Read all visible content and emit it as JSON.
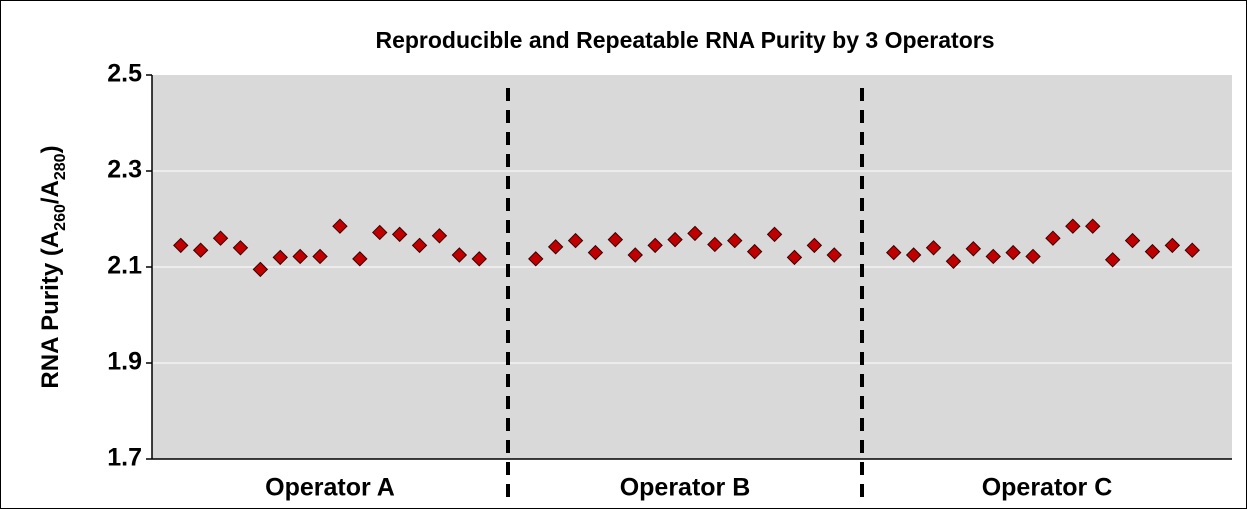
{
  "chart_data": {
    "type": "scatter",
    "title": "Reproducible and Repeatable RNA Purity by 3 Operators",
    "y_label": [
      {
        "text": "RNA Purity (A"
      },
      {
        "text": "260",
        "sub": true
      },
      {
        "text": "/A"
      },
      {
        "text": "280",
        "sub": true
      },
      {
        "text": ")"
      }
    ],
    "color": "#c00000",
    "ylim": [
      1.7,
      2.5
    ],
    "yticks": [
      1.7,
      1.9,
      2.1,
      2.3,
      2.5
    ],
    "grid": true,
    "groups": [
      {
        "name": "Operator A",
        "values": [
          2.145,
          2.135,
          2.16,
          2.14,
          2.095,
          2.12,
          2.122,
          2.122,
          2.185,
          2.117,
          2.172,
          2.168,
          2.145,
          2.165,
          2.125,
          2.117
        ]
      },
      {
        "name": "Operator B",
        "values": [
          2.117,
          2.142,
          2.155,
          2.13,
          2.157,
          2.125,
          2.145,
          2.157,
          2.17,
          2.147,
          2.155,
          2.132,
          2.168,
          2.12,
          2.145,
          2.125
        ]
      },
      {
        "name": "Operator C",
        "values": [
          2.13,
          2.125,
          2.14,
          2.112,
          2.138,
          2.122,
          2.13,
          2.122,
          2.16,
          2.185,
          2.185,
          2.115,
          2.155,
          2.132,
          2.145,
          2.135
        ]
      }
    ]
  }
}
